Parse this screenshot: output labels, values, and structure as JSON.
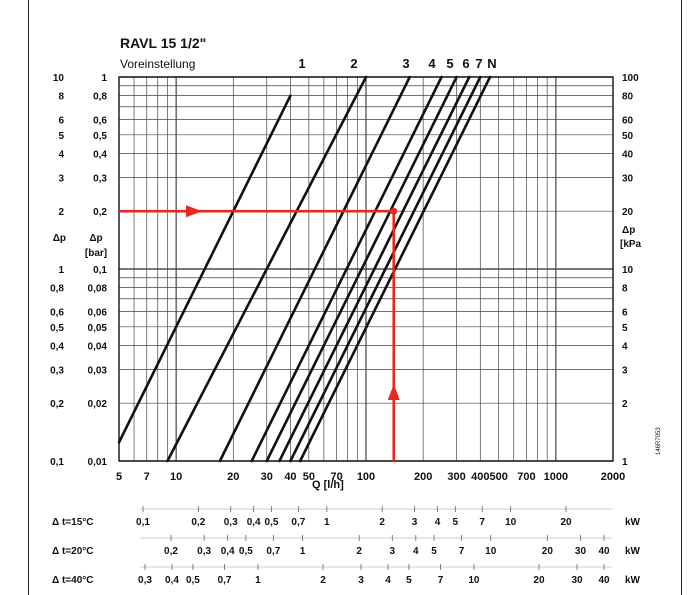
{
  "chart_data": {
    "type": "line",
    "title": "RAVL  15    1/2\"",
    "subtitle": "Voreinstellung",
    "scale": "log-log",
    "xlabel": "Q  [l/h]",
    "ylabel_left_outer": "Δp",
    "ylabel_left_inner": "Δp",
    "ylabel_left_inner_unit": "[bar]",
    "ylabel_right": "Δp",
    "ylabel_right_unit": "[kPa",
    "xlim": [
      5,
      2000
    ],
    "ylim_bar": [
      0.01,
      1
    ],
    "x_ticks": [
      "5",
      "7",
      "10",
      "20",
      "30",
      "40",
      "50",
      "70",
      "100",
      "200",
      "300",
      "400",
      "500",
      "700",
      "1000",
      "2000"
    ],
    "y_ticks_left_outer": [
      "10",
      "8",
      "6",
      "5",
      "4",
      "3",
      "2",
      "Δp",
      "1",
      "0,8",
      "0,6",
      "0,5",
      "0,4",
      "0,3",
      "0,2",
      "0,1"
    ],
    "y_ticks_left_inner": [
      "1",
      "0,8",
      "0,6",
      "0,5",
      "0,4",
      "0,3",
      "0,2",
      "0,1",
      "0,08",
      "0,06",
      "0,05",
      "0,04",
      "0,03",
      "0,02",
      "0,01"
    ],
    "y_ticks_right": [
      "100",
      "80",
      "60",
      "50",
      "40",
      "30",
      "20",
      "10",
      "8",
      "6",
      "5",
      "4",
      "3",
      "2",
      "1"
    ],
    "watermark": "146R7053",
    "series": [
      {
        "name": "1",
        "points": [
          [
            5,
            0.0125
          ],
          [
            40,
            0.8
          ]
        ]
      },
      {
        "name": "2",
        "points": [
          [
            9,
            0.01
          ],
          [
            100,
            1
          ]
        ]
      },
      {
        "name": "3",
        "points": [
          [
            17,
            0.01
          ],
          [
            170,
            1
          ]
        ]
      },
      {
        "name": "4",
        "points": [
          [
            25,
            0.01
          ],
          [
            250,
            1
          ]
        ]
      },
      {
        "name": "5",
        "points": [
          [
            30,
            0.01
          ],
          [
            300,
            1
          ]
        ]
      },
      {
        "name": "6",
        "points": [
          [
            35,
            0.01
          ],
          [
            350,
            1
          ]
        ]
      },
      {
        "name": "7",
        "points": [
          [
            40,
            0.01
          ],
          [
            400,
            1
          ]
        ]
      },
      {
        "name": "N",
        "points": [
          [
            45,
            0.01
          ],
          [
            450,
            1
          ]
        ]
      }
    ],
    "example_path": {
      "color": "#e8281e",
      "q_lh": 140,
      "dp_bar": 0.2,
      "dp_vertical_start_bar": 0.01
    },
    "power_scales": [
      {
        "label": "Δ t=15°C",
        "ticks": [
          "0,1",
          "0,2",
          "0,3",
          "0,4",
          "0,5",
          "0,7",
          "1",
          "2",
          "3",
          "4",
          "5",
          "7",
          "10",
          "20"
        ],
        "unit": "kW"
      },
      {
        "label": "Δ t=20°C",
        "ticks": [
          "0,2",
          "0,3",
          "0,4",
          "0,5",
          "0,7",
          "1",
          "2",
          "3",
          "4",
          "5",
          "7",
          "10",
          "20",
          "30",
          "40"
        ],
        "unit": "kW"
      },
      {
        "label": "Δ t=40°C",
        "ticks": [
          "0,3",
          "0,4",
          "0,5",
          "0,7",
          "1",
          "2",
          "3",
          "4",
          "5",
          "7",
          "10",
          "20",
          "30",
          "40"
        ],
        "unit": "kW"
      }
    ]
  }
}
